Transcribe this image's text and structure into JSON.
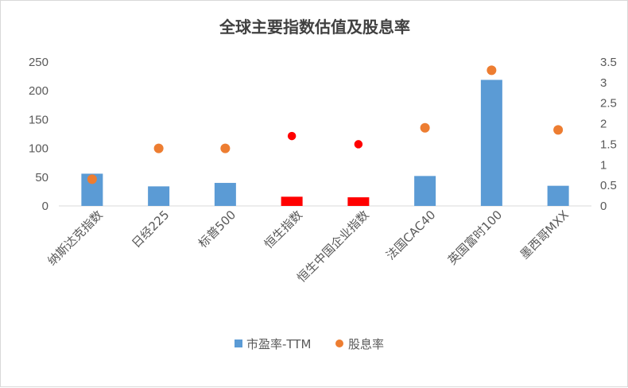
{
  "chart_data": {
    "type": "bar+scatter",
    "title": "全球主要指数估值及股息率",
    "categories": [
      "纳斯达克指数",
      "日经225",
      "标普500",
      "恒生指数",
      "恒生中国企业指数",
      "法国CAC40",
      "英国富时100",
      "墨西哥MXX"
    ],
    "series": [
      {
        "name": "市盈率-TTM",
        "kind": "bar",
        "axis": "left",
        "color": "#5b9bd5",
        "values": [
          56,
          34,
          40,
          16,
          15,
          52,
          219,
          35
        ],
        "highlight_color": "#ff0000",
        "highlight_indices": [
          3,
          4
        ]
      },
      {
        "name": "股息率",
        "kind": "scatter",
        "axis": "right",
        "color": "#ed7d31",
        "values": [
          0.65,
          1.4,
          1.4,
          1.7,
          1.5,
          1.9,
          3.3,
          1.85
        ],
        "highlight_color": "#ff0000",
        "highlight_indices": [
          3,
          4
        ]
      }
    ],
    "y_left": {
      "ylim": [
        0,
        250
      ],
      "ticks": [
        "0",
        "50",
        "100",
        "150",
        "200",
        "250"
      ]
    },
    "y_right": {
      "ylim": [
        0,
        3.5
      ],
      "ticks": [
        "0",
        "0.5",
        "1",
        "1.5",
        "2",
        "2.5",
        "3",
        "3.5"
      ]
    },
    "grid": false,
    "legend": "bottom"
  },
  "legend": {
    "items": [
      {
        "label": "市盈率-TTM",
        "color": "#5b9bd5",
        "marker": "square"
      },
      {
        "label": "股息率",
        "color": "#ed7d31",
        "marker": "circle"
      }
    ]
  }
}
